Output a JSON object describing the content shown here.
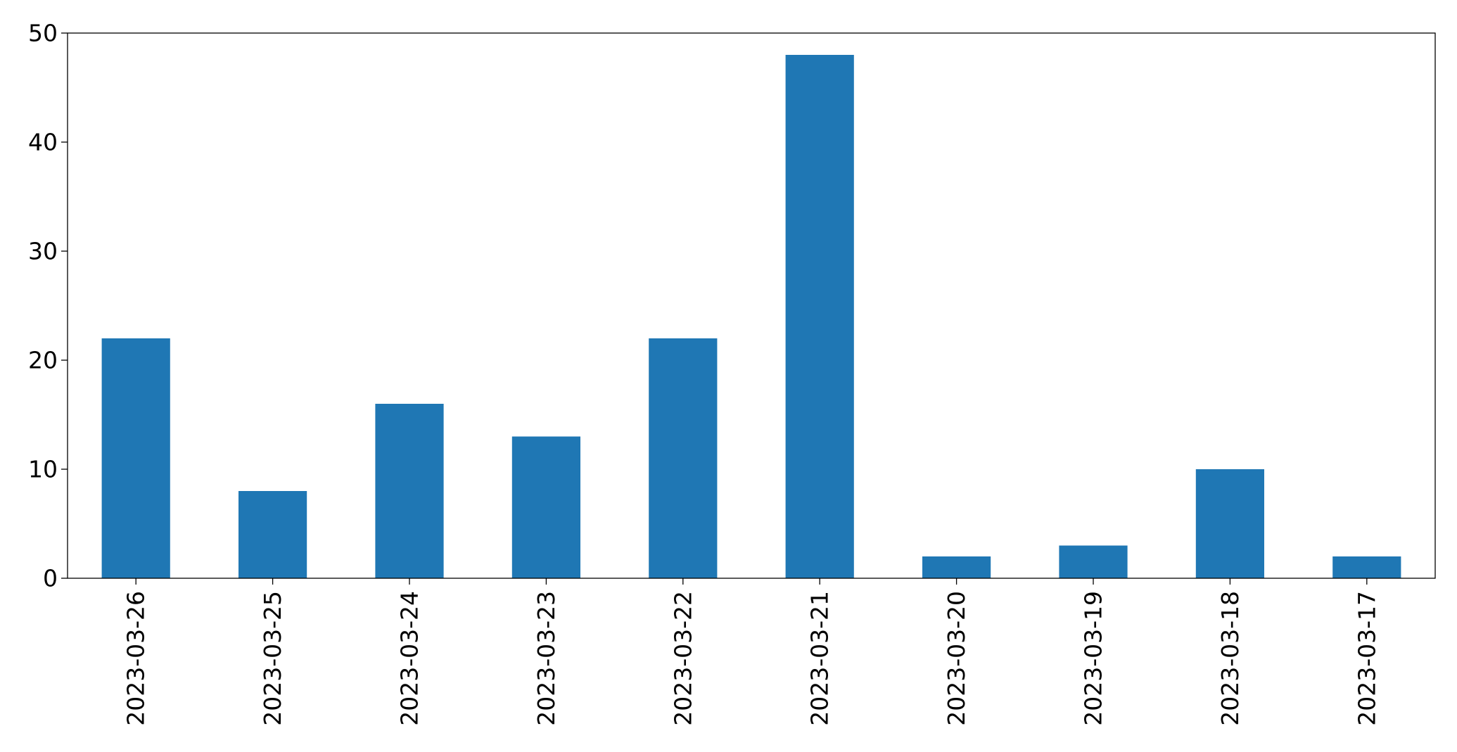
{
  "chart_data": {
    "type": "bar",
    "title": "",
    "xlabel": "",
    "ylabel": "",
    "categories": [
      "2023-03-26",
      "2023-03-25",
      "2023-03-24",
      "2023-03-23",
      "2023-03-22",
      "2023-03-21",
      "2023-03-20",
      "2023-03-19",
      "2023-03-18",
      "2023-03-17"
    ],
    "values": [
      22,
      8,
      16,
      13,
      22,
      48,
      2,
      3,
      10,
      2
    ],
    "ylim": [
      0,
      50
    ],
    "yticks": [
      0,
      10,
      20,
      30,
      40,
      50
    ],
    "bar_color": "#1f77b4",
    "grid": false,
    "legend": "none"
  }
}
